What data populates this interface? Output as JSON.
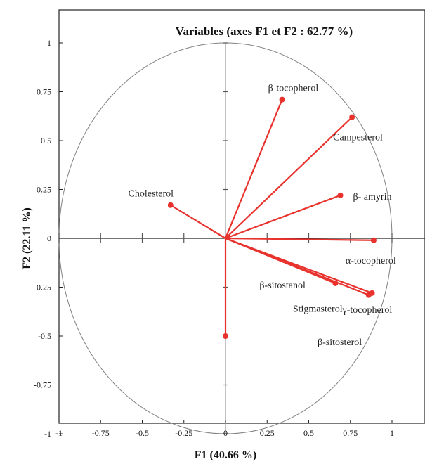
{
  "chart_data": {
    "type": "scatter",
    "subtype": "pca-correlation-circle",
    "title": "Variables (axes F1 et F2 : 62.77 %)",
    "xlabel": "F1 (40.66 %)",
    "ylabel": "F2 (22.11 %)",
    "xlim": [
      -1,
      1.2
    ],
    "ylim": [
      -1.08,
      1.18
    ],
    "x_ticks": [
      -1,
      -0.75,
      -0.5,
      -0.25,
      0,
      0.25,
      0.5,
      0.75,
      1
    ],
    "x_tick_labels": [
      "-1",
      "-0.75",
      "-0.5",
      "-0.25",
      "0",
      "0.25",
      "0.5",
      "0.75",
      "1"
    ],
    "y_ticks": [
      1,
      0.75,
      0.5,
      0.25,
      0,
      -0.25,
      -0.5,
      -0.75,
      -1
    ],
    "y_tick_labels": [
      "1",
      "0.75",
      "0.5",
      "0.25",
      "0",
      "-0.25",
      "-0.5",
      "-0.75",
      "-1"
    ],
    "grid": false,
    "unit_circle": true,
    "series_color": "#e8322d",
    "variables": [
      {
        "label": "β-tocopherol",
        "x": 0.34,
        "y": 0.71
      },
      {
        "label": "Campesterol",
        "x": 0.76,
        "y": 0.62
      },
      {
        "label": "Cholesterol",
        "x": -0.33,
        "y": 0.17
      },
      {
        "label": "β- amyrin",
        "x": 0.69,
        "y": 0.22
      },
      {
        "label": "α-tocopherol",
        "x": 0.89,
        "y": -0.01
      },
      {
        "label": "γ-tocopherol",
        "x": 0.88,
        "y": -0.28
      },
      {
        "label": "β-sitostanol",
        "x": 0.66,
        "y": -0.23
      },
      {
        "label": "Stigmasterol",
        "x": 0.86,
        "y": -0.29
      },
      {
        "label": "β-sitosterol",
        "x": 0.0,
        "y": -0.5
      }
    ]
  }
}
